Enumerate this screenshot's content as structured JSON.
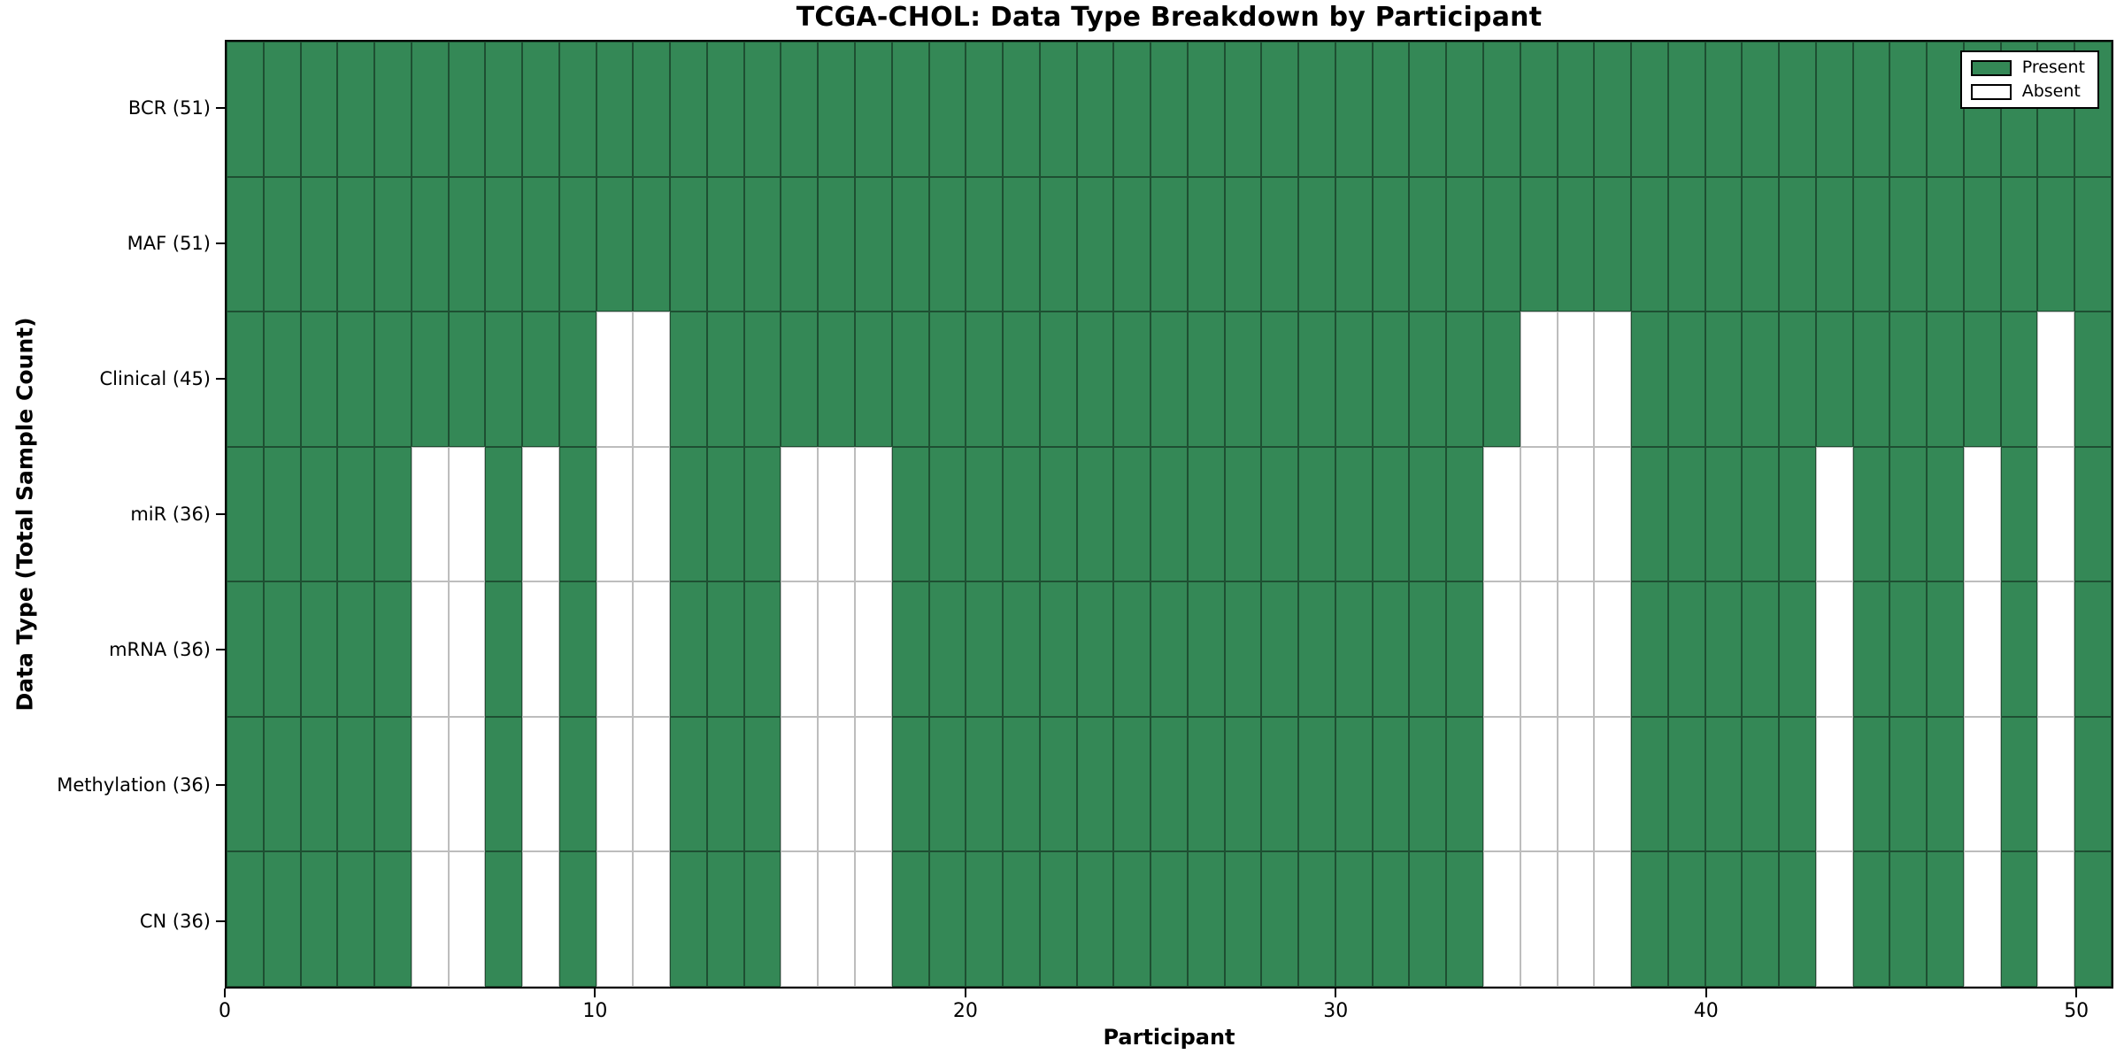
{
  "chart_data": {
    "type": "heatmap",
    "title": "TCGA-CHOL: Data Type Breakdown by Participant",
    "xlabel": "Participant",
    "ylabel": "Data Type (Total Sample Count)",
    "x_range": [
      0,
      51
    ],
    "n_participants": 51,
    "x_ticks": [
      0,
      10,
      20,
      30,
      40,
      50
    ],
    "x_tick_labels": [
      "0",
      "10",
      "20",
      "30",
      "40",
      "50"
    ],
    "grid": true,
    "legend_position": "upper right",
    "colors": {
      "present": "#348856",
      "absent": "#ffffff",
      "grid_line": "#2a2a2a"
    },
    "legend": [
      {
        "label": "Present",
        "color": "#348856"
      },
      {
        "label": "Absent",
        "color": "#ffffff"
      }
    ],
    "rows": [
      {
        "label": "BCR (51)",
        "data_type": "BCR",
        "total_samples": 51,
        "absent_participants": []
      },
      {
        "label": "MAF (51)",
        "data_type": "MAF",
        "total_samples": 51,
        "absent_participants": []
      },
      {
        "label": "Clinical (45)",
        "data_type": "Clinical",
        "total_samples": 45,
        "absent_participants": [
          10,
          11,
          35,
          36,
          37,
          49
        ]
      },
      {
        "label": "miR (36)",
        "data_type": "miR",
        "total_samples": 36,
        "absent_participants": [
          5,
          6,
          8,
          10,
          11,
          15,
          16,
          17,
          34,
          35,
          36,
          37,
          43,
          47,
          49
        ]
      },
      {
        "label": "mRNA (36)",
        "data_type": "mRNA",
        "total_samples": 36,
        "absent_participants": [
          5,
          6,
          8,
          10,
          11,
          15,
          16,
          17,
          34,
          35,
          36,
          37,
          43,
          47,
          49
        ]
      },
      {
        "label": "Methylation (36)",
        "data_type": "Methylation",
        "total_samples": 36,
        "absent_participants": [
          5,
          6,
          8,
          10,
          11,
          15,
          16,
          17,
          34,
          35,
          36,
          37,
          43,
          47,
          49
        ]
      },
      {
        "label": "CN (36)",
        "data_type": "CN",
        "total_samples": 36,
        "absent_participants": [
          5,
          6,
          8,
          10,
          11,
          15,
          16,
          17,
          34,
          35,
          36,
          37,
          43,
          47,
          49
        ]
      }
    ]
  }
}
